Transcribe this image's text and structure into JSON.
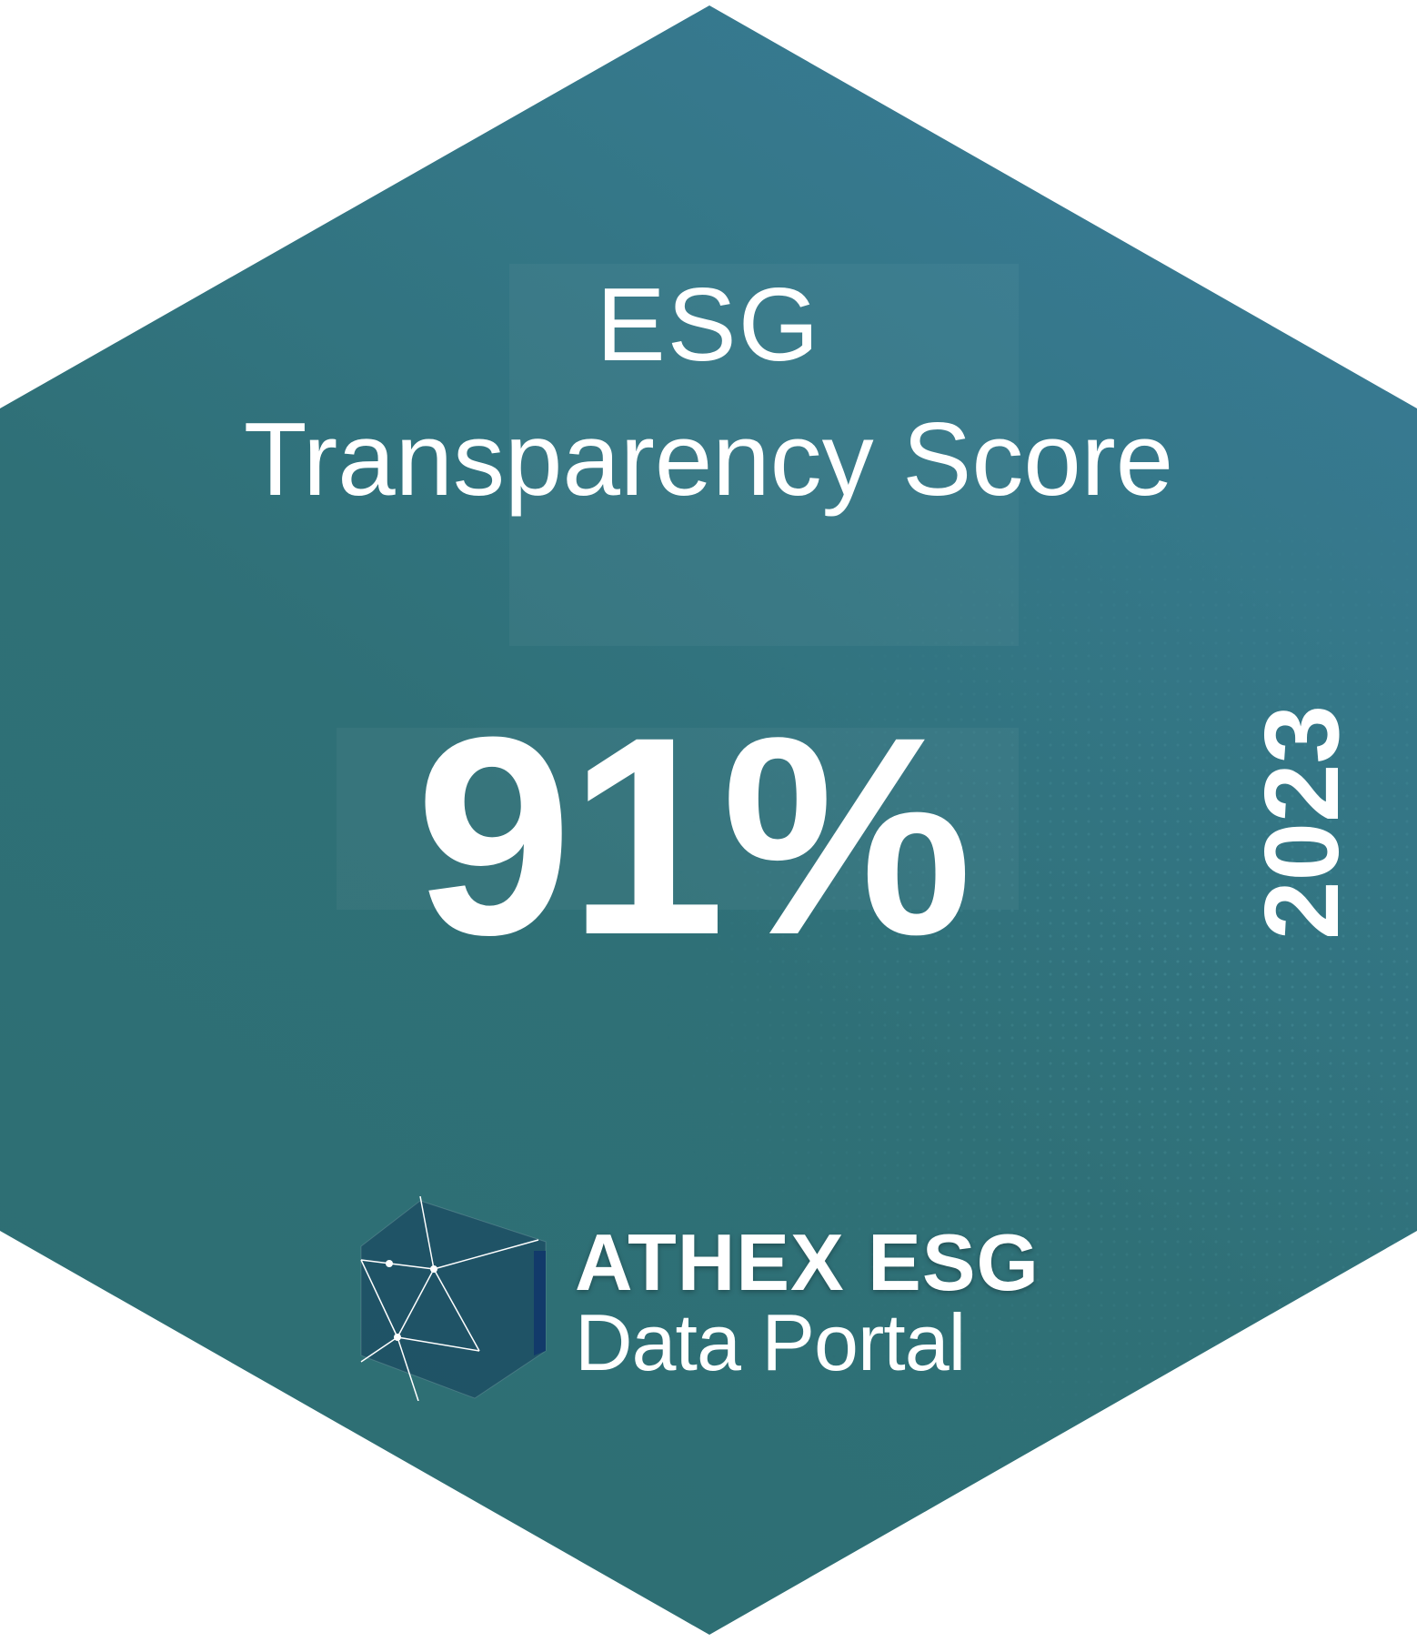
{
  "badge": {
    "title_line1": "ESG",
    "title_line2": "Transparency Score",
    "score": "91%",
    "year": "2023"
  },
  "brand": {
    "name_line1": "ATHEX ESG",
    "name_line2": "Data Portal",
    "logo_icon": "hexagon-network-icon"
  },
  "colors": {
    "background_start": "#2d6e72",
    "background_end": "#3b7b9c",
    "text": "#ffffff"
  }
}
